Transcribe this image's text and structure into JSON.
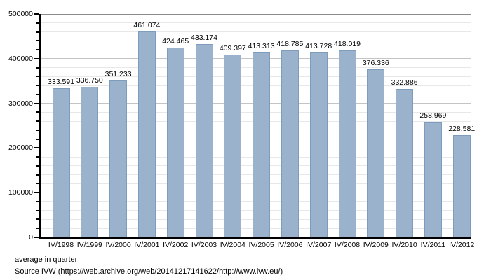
{
  "chart_data": {
    "type": "bar",
    "title": "",
    "xlabel": "",
    "ylabel": "",
    "categories": [
      "IV/1998",
      "IV/1999",
      "IV/2000",
      "IV/2001",
      "IV/2002",
      "IV/2003",
      "IV/2004",
      "IV/2005",
      "IV/2006",
      "IV/2007",
      "IV/2008",
      "IV/2009",
      "IV/2010",
      "IV/2011",
      "IV/2012"
    ],
    "values": [
      333591,
      336750,
      351233,
      461074,
      424465,
      433174,
      409397,
      413313,
      418785,
      413728,
      418019,
      376336,
      332886,
      258969,
      228581
    ],
    "value_labels": [
      "333.591",
      "336.750",
      "351.233",
      "461.074",
      "424.465",
      "433.174",
      "409.397",
      "413.313",
      "418.785",
      "413.728",
      "418.019",
      "376.336",
      "332.886",
      "258.969",
      "228.581"
    ],
    "ylim": [
      0,
      500000
    ],
    "y_major_step": 100000,
    "y_minor_step": 20000,
    "y_tick_labels": [
      "0",
      "100000",
      "200000",
      "300000",
      "400000",
      "500000"
    ],
    "grid": {
      "enabled": true,
      "minor_color": "#e8e8e8",
      "major_color": "#c4c4c4",
      "top_color": "#8c8c8c"
    },
    "legend": {
      "visible": false
    },
    "bar_fill": "#9bb2cc",
    "bar_border": "#7e9cbc"
  },
  "footer": {
    "line1": "average in quarter",
    "line2": "Source IVW (https://web.archive.org/web/20141217141622/http://www.ivw.eu/)"
  }
}
